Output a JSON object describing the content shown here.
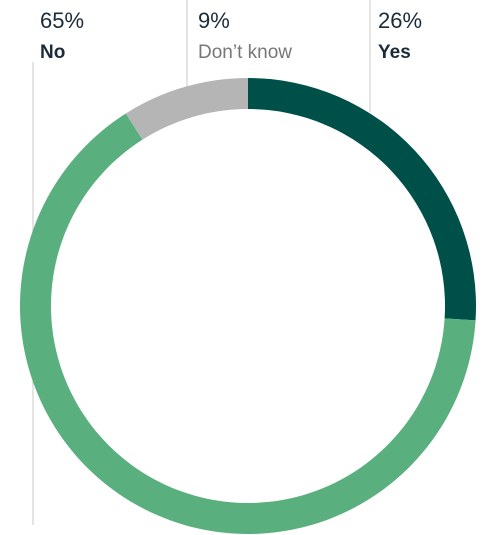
{
  "chart_data": {
    "type": "donut",
    "categories": [
      "Yes",
      "No",
      "Don’t know"
    ],
    "values": [
      26,
      65,
      9
    ],
    "value_labels": [
      "26%",
      "65%",
      "9%"
    ],
    "colors": [
      "#00504a",
      "#5aaf7e",
      "#b5b5b5"
    ]
  }
}
